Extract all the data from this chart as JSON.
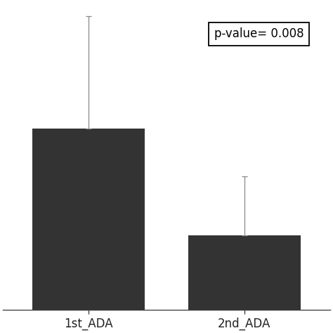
{
  "categories": [
    "1st_ADA",
    "2nd_ADA"
  ],
  "values": [
    0.68,
    0.28
  ],
  "errors": [
    0.42,
    0.22
  ],
  "bar_color": "#333333",
  "bar_width": 0.72,
  "background_color": "#ffffff",
  "pvalue_text": "p-value= 0.008",
  "pvalue_fontsize": 12,
  "xlabel_fontsize": 12,
  "ylim": [
    0,
    1.15
  ],
  "xlim": [
    -0.55,
    1.55
  ]
}
